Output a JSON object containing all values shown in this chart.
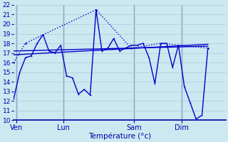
{
  "xlabel": "Température (°c)",
  "background_color": "#cce8f0",
  "grid_color": "#a8ccd8",
  "line_color": "#0000cc",
  "ylim": [
    10,
    22
  ],
  "yticks": [
    10,
    11,
    12,
    13,
    14,
    15,
    16,
    17,
    18,
    19,
    20,
    21,
    22
  ],
  "day_labels": [
    "Ven",
    "Lun",
    "Sam",
    "Dim"
  ],
  "day_positions": [
    0.5,
    8.5,
    20.5,
    28.5
  ],
  "vline_positions": [
    0.5,
    8.5,
    20.5,
    28.5
  ],
  "xlim": [
    0,
    36
  ],
  "series_main_x": [
    0,
    1,
    2,
    3,
    4,
    5,
    6,
    7,
    8,
    9,
    10,
    11,
    12,
    13,
    14,
    15,
    16,
    17,
    18,
    19,
    20,
    21,
    22,
    23,
    24,
    25,
    26,
    27,
    28,
    29,
    30,
    31,
    32,
    33
  ],
  "series_main_y": [
    12.2,
    14.9,
    16.5,
    16.7,
    18.0,
    18.9,
    17.2,
    17.0,
    17.8,
    14.6,
    14.4,
    12.7,
    13.2,
    12.6,
    21.5,
    17.2,
    17.5,
    18.5,
    17.2,
    17.5,
    17.8,
    17.8,
    18.0,
    16.5,
    13.8,
    18.0,
    18.0,
    15.5,
    17.8,
    13.5,
    11.8,
    10.1,
    10.5,
    17.5
  ],
  "series_dotted_x": [
    0,
    2,
    5,
    14,
    20,
    25,
    33
  ],
  "series_dotted_y": [
    16.0,
    18.0,
    18.9,
    21.5,
    17.5,
    18.0,
    17.5
  ],
  "series_trend1_x": [
    0,
    33
  ],
  "series_trend1_y": [
    17.2,
    17.7
  ],
  "series_trend2_x": [
    0,
    33
  ],
  "series_trend2_y": [
    16.8,
    17.9
  ],
  "marker_size": 2.5,
  "line_width": 1.0
}
